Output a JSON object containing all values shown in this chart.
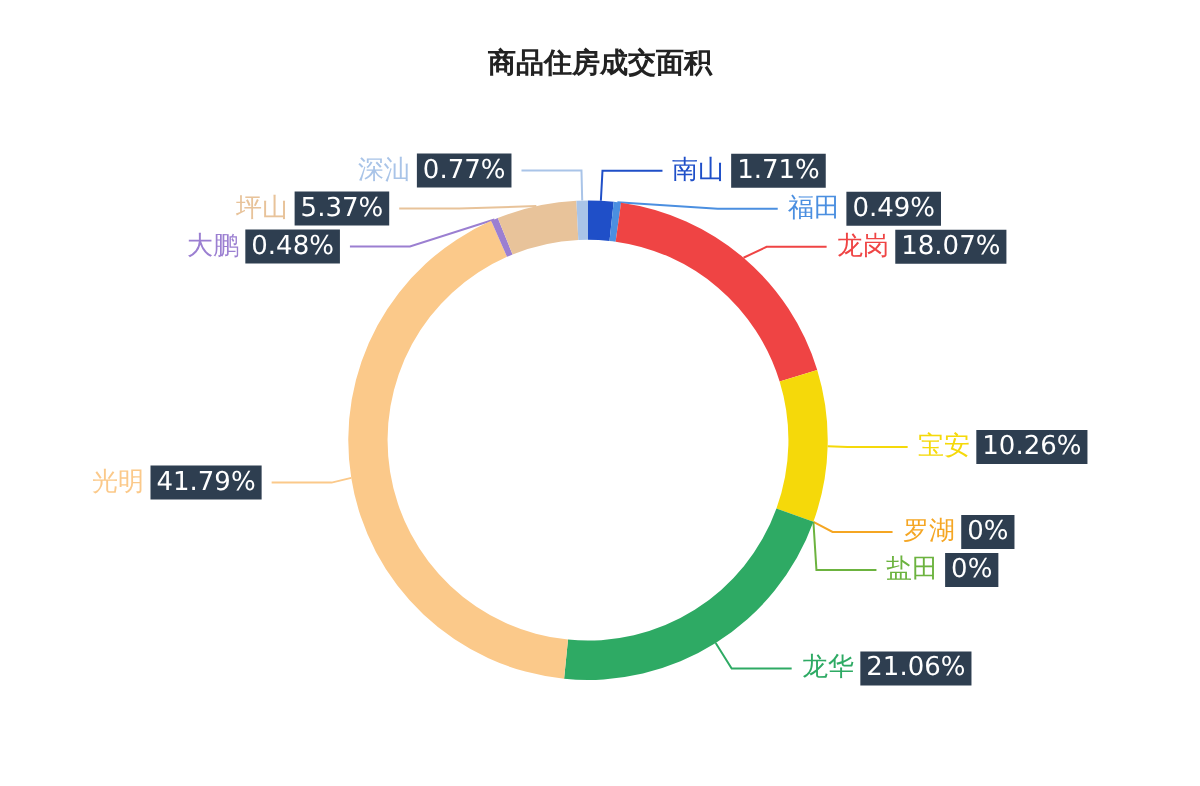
{
  "chart_data": {
    "type": "donut",
    "title": "商品住房成交面积",
    "categories": [
      "南山",
      "福田",
      "龙岗",
      "宝安",
      "罗湖",
      "盐田",
      "龙华",
      "光明",
      "大鹏",
      "坪山",
      "深汕"
    ],
    "values": [
      1.71,
      0.49,
      18.07,
      10.26,
      0,
      0,
      21.06,
      41.79,
      0.48,
      5.37,
      0.77
    ],
    "value_labels": [
      "1.71%",
      "0.49%",
      "18.07%",
      "10.26%",
      "0%",
      "0%",
      "21.06%",
      "41.79%",
      "0.48%",
      "5.37%",
      "0.77%"
    ],
    "colors": [
      "#1f4fc8",
      "#4b8fe0",
      "#ef4444",
      "#f5d90a",
      "#f5a623",
      "#6cb33f",
      "#2eaa64",
      "#fbc98a",
      "#9b7fd1",
      "#e8c39a",
      "#a9c4e8"
    ]
  }
}
